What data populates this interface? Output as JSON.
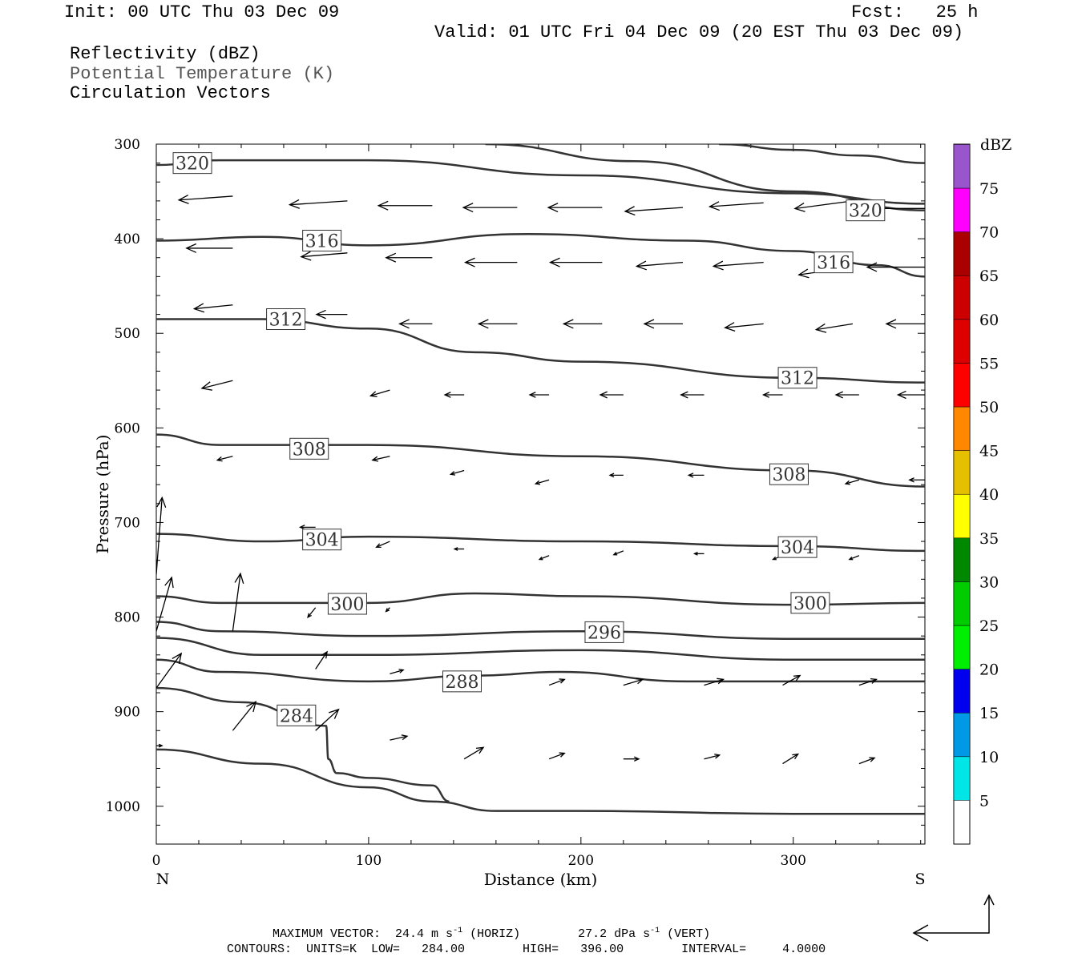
{
  "header": {
    "init": "Init: 00 UTC Thu 03 Dec 09",
    "fcst": "Fcst:   25 h",
    "valid": "Valid: 01 UTC Fri 04 Dec 09 (20 EST Thu 03 Dec 09)",
    "field1": "Reflectivity (dBZ)",
    "field2": "Potential Temperature (K)",
    "field3": "Circulation Vectors"
  },
  "footer": {
    "max_vector_label": "MAXIMUM VECTOR:",
    "max_horiz": "24.4 m s",
    "max_horiz_exp": "-1",
    "max_horiz_tag": "(HORIZ)",
    "max_vert": "27.2 dPa s",
    "max_vert_exp": "-1",
    "max_vert_tag": "(VERT)",
    "contours": "CONTOURS:  UNITS=K  LOW=   284.00        HIGH=   396.00        INTERVAL=     4.0000"
  },
  "colorbar": {
    "title": "dBZ",
    "levels": [
      {
        "label": "5",
        "color": "#00e5e5"
      },
      {
        "label": "10",
        "color": "#0099e5"
      },
      {
        "label": "15",
        "color": "#0000ee"
      },
      {
        "label": "20",
        "color": "#00ee00"
      },
      {
        "label": "25",
        "color": "#00cc00"
      },
      {
        "label": "30",
        "color": "#008800"
      },
      {
        "label": "35",
        "color": "#ffff00"
      },
      {
        "label": "40",
        "color": "#e5c000"
      },
      {
        "label": "45",
        "color": "#ff8800"
      },
      {
        "label": "50",
        "color": "#ff0000"
      },
      {
        "label": "55",
        "color": "#dd0000"
      },
      {
        "label": "60",
        "color": "#cc0000"
      },
      {
        "label": "65",
        "color": "#aa0000"
      },
      {
        "label": "70",
        "color": "#ff00ff"
      },
      {
        "label": "75",
        "color": "#9955cc"
      }
    ]
  },
  "chart_data": {
    "type": "line",
    "xlabel": "Distance (km)",
    "ylabel": "Pressure (hPa)",
    "xlim": [
      0,
      362
    ],
    "ylim": [
      1040,
      300
    ],
    "x_ticks": [
      0,
      100,
      200,
      300
    ],
    "y_ticks": [
      300,
      400,
      500,
      600,
      700,
      800,
      900,
      1000
    ],
    "x_end_labels": {
      "left": "N",
      "right": "S"
    },
    "contour_color": "#333333",
    "contours": [
      {
        "level": 320,
        "label": "320",
        "x": [
          0,
          30,
          100,
          200,
          300,
          362
        ],
        "y": [
          322,
          317,
          317,
          333,
          352,
          363
        ]
      },
      {
        "level": 320,
        "label": "320",
        "x": [
          155,
          225,
          300,
          362
        ],
        "y": [
          300,
          318,
          350,
          370
        ]
      },
      {
        "level": 320,
        "label": "320",
        "x": [
          265,
          300,
          330,
          362
        ],
        "y": [
          300,
          306,
          312,
          320
        ]
      },
      {
        "level": 316,
        "label": "316",
        "x": [
          0,
          50,
          100,
          175,
          250,
          300,
          340,
          362
        ],
        "y": [
          402,
          398,
          407,
          395,
          402,
          413,
          428,
          440
        ]
      },
      {
        "level": 312,
        "label": "312",
        "x": [
          0,
          50,
          100,
          150,
          200,
          300,
          362
        ],
        "y": [
          485,
          485,
          495,
          520,
          530,
          547,
          552
        ]
      },
      {
        "level": 308,
        "label": "308",
        "x": [
          0,
          30,
          100,
          200,
          300,
          362
        ],
        "y": [
          607,
          618,
          618,
          630,
          645,
          662
        ]
      },
      {
        "level": 304,
        "label": "304",
        "x": [
          0,
          50,
          100,
          200,
          300,
          362
        ],
        "y": [
          712,
          720,
          715,
          720,
          725,
          730
        ]
      },
      {
        "level": 300,
        "label": "300",
        "x": [
          0,
          30,
          100,
          150,
          200,
          300,
          362
        ],
        "y": [
          778,
          785,
          785,
          775,
          778,
          787,
          785
        ]
      },
      {
        "level": 296,
        "label": "296",
        "x": [
          0,
          30,
          100,
          200,
          300,
          362
        ],
        "y": [
          805,
          815,
          820,
          815,
          823,
          823
        ]
      },
      {
        "level": 292,
        "label": "",
        "x": [
          0,
          50,
          100,
          200,
          300,
          362
        ],
        "y": [
          822,
          840,
          840,
          835,
          845,
          845
        ]
      },
      {
        "level": 288,
        "label": "288",
        "x": [
          0,
          30,
          100,
          150,
          190,
          250,
          300,
          362
        ],
        "y": [
          845,
          858,
          868,
          862,
          858,
          868,
          868,
          868
        ]
      },
      {
        "level": 284,
        "label": "284",
        "x": [
          0,
          40,
          80,
          81,
          85,
          100,
          130,
          138
        ],
        "y": [
          875,
          890,
          915,
          950,
          965,
          970,
          978,
          995
        ]
      },
      {
        "level": 280,
        "label": "",
        "x": [
          0,
          50,
          100,
          130,
          160,
          200,
          300,
          362
        ],
        "y": [
          940,
          955,
          980,
          995,
          1005,
          1005,
          1008,
          1008
        ]
      }
    ],
    "vectors": [
      {
        "x": 0,
        "y": 936,
        "u": 3,
        "v": 0
      },
      {
        "x": 0,
        "y": 875,
        "u": 13,
        "v": -18
      },
      {
        "x": 0,
        "y": 815,
        "u": 8,
        "v": -28
      },
      {
        "x": 0,
        "y": 755,
        "u": 3,
        "v": -40
      },
      {
        "x": 0,
        "y": 690,
        "u": -12,
        "v": -35
      },
      {
        "x": 0,
        "y": 625,
        "u": -16,
        "v": -22
      },
      {
        "x": 0,
        "y": 555,
        "u": -18,
        "v": -12
      },
      {
        "x": 0,
        "y": 480,
        "u": -20,
        "v": -5
      },
      {
        "x": 0,
        "y": 405,
        "u": -24,
        "v": 0
      },
      {
        "x": 0,
        "y": 350,
        "u": -30,
        "v": 3
      },
      {
        "x": 36,
        "y": 920,
        "u": 12,
        "v": -15
      },
      {
        "x": 36,
        "y": 815,
        "u": 4,
        "v": -30
      },
      {
        "x": 36,
        "y": 630,
        "u": -8,
        "v": 2
      },
      {
        "x": 36,
        "y": 550,
        "u": -16,
        "v": 4
      },
      {
        "x": 36,
        "y": 470,
        "u": -20,
        "v": 2
      },
      {
        "x": 36,
        "y": 410,
        "u": -24,
        "v": 0
      },
      {
        "x": 36,
        "y": 355,
        "u": -28,
        "v": 2
      },
      {
        "x": 75,
        "y": 790,
        "u": -4,
        "v": 5
      },
      {
        "x": 75,
        "y": 705,
        "u": -8,
        "v": 0
      },
      {
        "x": 75,
        "y": 620,
        "u": -10,
        "v": 0
      },
      {
        "x": 75,
        "y": 855,
        "u": 6,
        "v": -9
      },
      {
        "x": 75,
        "y": 920,
        "u": 12,
        "v": -11
      },
      {
        "x": 90,
        "y": 480,
        "u": -16,
        "v": 0
      },
      {
        "x": 90,
        "y": 415,
        "u": -24,
        "v": 2
      },
      {
        "x": 90,
        "y": 360,
        "u": -30,
        "v": 2
      },
      {
        "x": 110,
        "y": 930,
        "u": 9,
        "v": -2
      },
      {
        "x": 110,
        "y": 860,
        "u": 7,
        "v": -2
      },
      {
        "x": 110,
        "y": 790,
        "u": -2,
        "v": 2
      },
      {
        "x": 110,
        "y": 720,
        "u": -7,
        "v": 3
      },
      {
        "x": 110,
        "y": 630,
        "u": -9,
        "v": 2
      },
      {
        "x": 110,
        "y": 560,
        "u": -10,
        "v": 3
      },
      {
        "x": 130,
        "y": 490,
        "u": -17,
        "v": 0
      },
      {
        "x": 130,
        "y": 420,
        "u": -24,
        "v": 0
      },
      {
        "x": 130,
        "y": 365,
        "u": -28,
        "v": 0
      },
      {
        "x": 145,
        "y": 950,
        "u": 10,
        "v": -6
      },
      {
        "x": 145,
        "y": 870,
        "u": 8,
        "v": -3
      },
      {
        "x": 145,
        "y": 728,
        "u": -5,
        "v": 0
      },
      {
        "x": 145,
        "y": 645,
        "u": -7,
        "v": 2
      },
      {
        "x": 145,
        "y": 565,
        "u": -10,
        "v": 0
      },
      {
        "x": 170,
        "y": 490,
        "u": -20,
        "v": 0
      },
      {
        "x": 170,
        "y": 425,
        "u": -27,
        "v": 0
      },
      {
        "x": 170,
        "y": 367,
        "u": -28,
        "v": 0
      },
      {
        "x": 185,
        "y": 950,
        "u": 8,
        "v": -3
      },
      {
        "x": 185,
        "y": 872,
        "u": 8,
        "v": -3
      },
      {
        "x": 185,
        "y": 735,
        "u": -5,
        "v": 2
      },
      {
        "x": 185,
        "y": 655,
        "u": -7,
        "v": 2
      },
      {
        "x": 185,
        "y": 565,
        "u": -10,
        "v": 0
      },
      {
        "x": 210,
        "y": 490,
        "u": -20,
        "v": 0
      },
      {
        "x": 210,
        "y": 425,
        "u": -27,
        "v": 0
      },
      {
        "x": 210,
        "y": 367,
        "u": -28,
        "v": 0
      },
      {
        "x": 220,
        "y": 950,
        "u": 8,
        "v": 0
      },
      {
        "x": 220,
        "y": 872,
        "u": 10,
        "v": -3
      },
      {
        "x": 220,
        "y": 730,
        "u": -5,
        "v": 2
      },
      {
        "x": 220,
        "y": 650,
        "u": -7,
        "v": 0
      },
      {
        "x": 220,
        "y": 565,
        "u": -12,
        "v": 0
      },
      {
        "x": 248,
        "y": 490,
        "u": -20,
        "v": 0
      },
      {
        "x": 248,
        "y": 425,
        "u": -24,
        "v": 2
      },
      {
        "x": 248,
        "y": 367,
        "u": -30,
        "v": 2
      },
      {
        "x": 258,
        "y": 950,
        "u": 8,
        "v": -2
      },
      {
        "x": 258,
        "y": 872,
        "u": 10,
        "v": -3
      },
      {
        "x": 258,
        "y": 733,
        "u": -5,
        "v": 0
      },
      {
        "x": 258,
        "y": 650,
        "u": -8,
        "v": 0
      },
      {
        "x": 258,
        "y": 565,
        "u": -12,
        "v": 0
      },
      {
        "x": 286,
        "y": 490,
        "u": -20,
        "v": 2
      },
      {
        "x": 286,
        "y": 425,
        "u": -26,
        "v": 2
      },
      {
        "x": 286,
        "y": 362,
        "u": -28,
        "v": 2
      },
      {
        "x": 295,
        "y": 955,
        "u": 8,
        "v": -5
      },
      {
        "x": 295,
        "y": 872,
        "u": 9,
        "v": -5
      },
      {
        "x": 295,
        "y": 735,
        "u": -5,
        "v": 2
      },
      {
        "x": 295,
        "y": 655,
        "u": -6,
        "v": 2
      },
      {
        "x": 295,
        "y": 565,
        "u": -10,
        "v": 0
      },
      {
        "x": 328,
        "y": 490,
        "u": -19,
        "v": 3
      },
      {
        "x": 328,
        "y": 430,
        "u": -28,
        "v": 4
      },
      {
        "x": 328,
        "y": 360,
        "u": -30,
        "v": 4
      },
      {
        "x": 331,
        "y": 955,
        "u": 8,
        "v": -3
      },
      {
        "x": 331,
        "y": 872,
        "u": 9,
        "v": -3
      },
      {
        "x": 331,
        "y": 735,
        "u": -5,
        "v": 2
      },
      {
        "x": 331,
        "y": 655,
        "u": -7,
        "v": 2
      },
      {
        "x": 331,
        "y": 565,
        "u": -12,
        "v": 0
      },
      {
        "x": 362,
        "y": 490,
        "u": -20,
        "v": 0
      },
      {
        "x": 362,
        "y": 430,
        "u": -30,
        "v": 0
      },
      {
        "x": 362,
        "y": 368,
        "u": -32,
        "v": 0
      },
      {
        "x": 362,
        "y": 565,
        "u": -14,
        "v": 0
      },
      {
        "x": 362,
        "y": 655,
        "u": -8,
        "v": 0
      }
    ]
  }
}
